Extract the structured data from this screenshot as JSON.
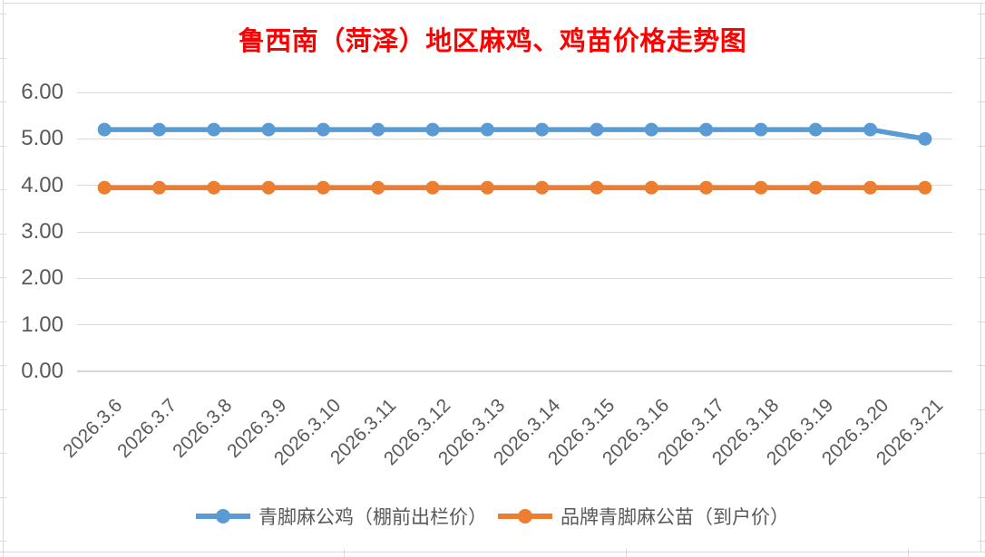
{
  "title": {
    "text": "鲁西南（菏泽）地区麻鸡、鸡苗价格走势图",
    "color": "#FF0000"
  },
  "chart_data": {
    "type": "line",
    "title": "鲁西南（菏泽）地区麻鸡、鸡苗价格走势图",
    "categories": [
      "2026.3.6",
      "2026.3.7",
      "2026.3.8",
      "2026.3.9",
      "2026.3.10",
      "2026.3.11",
      "2026.3.12",
      "2026.3.13",
      "2026.3.14",
      "2026.3.15",
      "2026.3.16",
      "2026.3.17",
      "2026.3.18",
      "2026.3.19",
      "2026.3.20",
      "2026.3.21"
    ],
    "series": [
      {
        "name": "青脚麻公鸡（棚前出栏价）",
        "color": "#5B9BD5",
        "values": [
          5.2,
          5.2,
          5.2,
          5.2,
          5.2,
          5.2,
          5.2,
          5.2,
          5.2,
          5.2,
          5.2,
          5.2,
          5.2,
          5.2,
          5.2,
          5.0
        ]
      },
      {
        "name": "品牌青脚麻公苗（到户价）",
        "color": "#ED7D31",
        "values": [
          3.95,
          3.95,
          3.95,
          3.95,
          3.95,
          3.95,
          3.95,
          3.95,
          3.95,
          3.95,
          3.95,
          3.95,
          3.95,
          3.95,
          3.95,
          3.95
        ]
      }
    ],
    "xlabel": "",
    "ylabel": "",
    "ylim": [
      0,
      6
    ],
    "y_ticks": [
      "6.00",
      "5.00",
      "4.00",
      "3.00",
      "2.00",
      "1.00",
      "0.00"
    ],
    "grid": true,
    "legend_position": "bottom",
    "axis_text_color": "#595959",
    "gridline_color": "#D9D9D9"
  }
}
